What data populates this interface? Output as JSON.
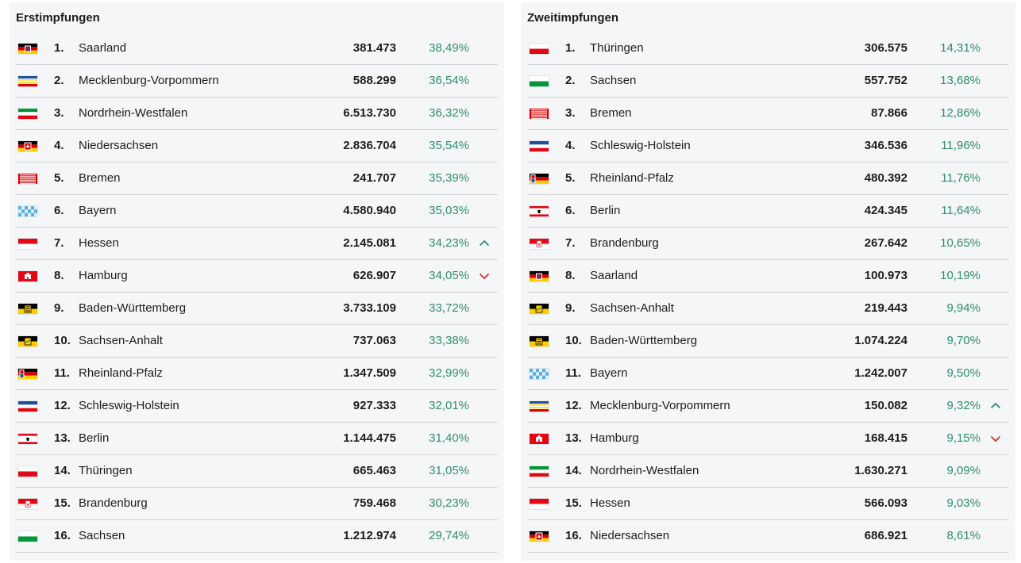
{
  "colors": {
    "percent": "#2f8f68",
    "trend_up": "#2f8f68",
    "trend_down": "#d9302f",
    "panel_bg": "#f5f6f8",
    "divider": "#cfd3d8"
  },
  "panels": [
    {
      "title": "Erstimpfungen",
      "rows": [
        {
          "rank": "1.",
          "state": "Saarland",
          "count": "381.473",
          "percent": "38,49%",
          "flag": "saarland-flag-icon",
          "trend": ""
        },
        {
          "rank": "2.",
          "state": "Mecklenburg-Vorpommern",
          "count": "588.299",
          "percent": "36,54%",
          "flag": "mecklenburg-vorpommern-flag-icon",
          "trend": ""
        },
        {
          "rank": "3.",
          "state": "Nordrhein-Westfalen",
          "count": "6.513.730",
          "percent": "36,32%",
          "flag": "nordrhein-westfalen-flag-icon",
          "trend": ""
        },
        {
          "rank": "4.",
          "state": "Niedersachsen",
          "count": "2.836.704",
          "percent": "35,54%",
          "flag": "niedersachsen-flag-icon",
          "trend": ""
        },
        {
          "rank": "5.",
          "state": "Bremen",
          "count": "241.707",
          "percent": "35,39%",
          "flag": "bremen-flag-icon",
          "trend": ""
        },
        {
          "rank": "6.",
          "state": "Bayern",
          "count": "4.580.940",
          "percent": "35,03%",
          "flag": "bayern-flag-icon",
          "trend": ""
        },
        {
          "rank": "7.",
          "state": "Hessen",
          "count": "2.145.081",
          "percent": "34,23%",
          "flag": "hessen-flag-icon",
          "trend": "up"
        },
        {
          "rank": "8.",
          "state": "Hamburg",
          "count": "626.907",
          "percent": "34,05%",
          "flag": "hamburg-flag-icon",
          "trend": "down"
        },
        {
          "rank": "9.",
          "state": "Baden-Württemberg",
          "count": "3.733.109",
          "percent": "33,72%",
          "flag": "baden-wuerttemberg-flag-icon",
          "trend": ""
        },
        {
          "rank": "10.",
          "state": "Sachsen-Anhalt",
          "count": "737.063",
          "percent": "33,38%",
          "flag": "sachsen-anhalt-flag-icon",
          "trend": ""
        },
        {
          "rank": "11.",
          "state": "Rheinland-Pfalz",
          "count": "1.347.509",
          "percent": "32,99%",
          "flag": "rheinland-pfalz-flag-icon",
          "trend": ""
        },
        {
          "rank": "12.",
          "state": "Schleswig-Holstein",
          "count": "927.333",
          "percent": "32,01%",
          "flag": "schleswig-holstein-flag-icon",
          "trend": ""
        },
        {
          "rank": "13.",
          "state": "Berlin",
          "count": "1.144.475",
          "percent": "31,40%",
          "flag": "berlin-flag-icon",
          "trend": ""
        },
        {
          "rank": "14.",
          "state": "Thüringen",
          "count": "665.463",
          "percent": "31,05%",
          "flag": "thueringen-flag-icon",
          "trend": ""
        },
        {
          "rank": "15.",
          "state": "Brandenburg",
          "count": "759.468",
          "percent": "30,23%",
          "flag": "brandenburg-flag-icon",
          "trend": ""
        },
        {
          "rank": "16.",
          "state": "Sachsen",
          "count": "1.212.974",
          "percent": "29,74%",
          "flag": "sachsen-flag-icon",
          "trend": ""
        }
      ]
    },
    {
      "title": "Zweitimpfungen",
      "rows": [
        {
          "rank": "1.",
          "state": "Thüringen",
          "count": "306.575",
          "percent": "14,31%",
          "flag": "thueringen-flag-icon",
          "trend": ""
        },
        {
          "rank": "2.",
          "state": "Sachsen",
          "count": "557.752",
          "percent": "13,68%",
          "flag": "sachsen-flag-icon",
          "trend": ""
        },
        {
          "rank": "3.",
          "state": "Bremen",
          "count": "87.866",
          "percent": "12,86%",
          "flag": "bremen-flag-icon",
          "trend": ""
        },
        {
          "rank": "4.",
          "state": "Schleswig-Holstein",
          "count": "346.536",
          "percent": "11,96%",
          "flag": "schleswig-holstein-flag-icon",
          "trend": ""
        },
        {
          "rank": "5.",
          "state": "Rheinland-Pfalz",
          "count": "480.392",
          "percent": "11,76%",
          "flag": "rheinland-pfalz-flag-icon",
          "trend": ""
        },
        {
          "rank": "6.",
          "state": "Berlin",
          "count": "424.345",
          "percent": "11,64%",
          "flag": "berlin-flag-icon",
          "trend": ""
        },
        {
          "rank": "7.",
          "state": "Brandenburg",
          "count": "267.642",
          "percent": "10,65%",
          "flag": "brandenburg-flag-icon",
          "trend": ""
        },
        {
          "rank": "8.",
          "state": "Saarland",
          "count": "100.973",
          "percent": "10,19%",
          "flag": "saarland-flag-icon",
          "trend": ""
        },
        {
          "rank": "9.",
          "state": "Sachsen-Anhalt",
          "count": "219.443",
          "percent": "9,94%",
          "flag": "sachsen-anhalt-flag-icon",
          "trend": ""
        },
        {
          "rank": "10.",
          "state": "Baden-Württemberg",
          "count": "1.074.224",
          "percent": "9,70%",
          "flag": "baden-wuerttemberg-flag-icon",
          "trend": ""
        },
        {
          "rank": "11.",
          "state": "Bayern",
          "count": "1.242.007",
          "percent": "9,50%",
          "flag": "bayern-flag-icon",
          "trend": ""
        },
        {
          "rank": "12.",
          "state": "Mecklenburg-Vorpommern",
          "count": "150.082",
          "percent": "9,32%",
          "flag": "mecklenburg-vorpommern-flag-icon",
          "trend": "up"
        },
        {
          "rank": "13.",
          "state": "Hamburg",
          "count": "168.415",
          "percent": "9,15%",
          "flag": "hamburg-flag-icon",
          "trend": "down"
        },
        {
          "rank": "14.",
          "state": "Nordrhein-Westfalen",
          "count": "1.630.271",
          "percent": "9,09%",
          "flag": "nordrhein-westfalen-flag-icon",
          "trend": ""
        },
        {
          "rank": "15.",
          "state": "Hessen",
          "count": "566.093",
          "percent": "9,03%",
          "flag": "hessen-flag-icon",
          "trend": ""
        },
        {
          "rank": "16.",
          "state": "Niedersachsen",
          "count": "686.921",
          "percent": "8,61%",
          "flag": "niedersachsen-flag-icon",
          "trend": ""
        }
      ]
    }
  ]
}
